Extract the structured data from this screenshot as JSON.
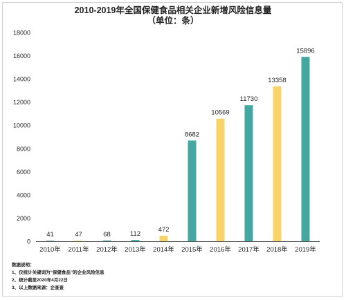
{
  "title": "2010-2019年全国保健食品相关企业新增风险信息量",
  "subtitle": "（单位：条）",
  "colors": {
    "teal": "#45a8a0",
    "yellow": "#f8d468",
    "axis": "#555555"
  },
  "notes": {
    "header": "数据说明：",
    "lines": [
      "1、仅统计关键词为“保健食品”的企业风险信息",
      "2、统计截至2020年4月22日",
      "3、以上数据来源：企查查"
    ]
  },
  "chart_data": {
    "type": "bar",
    "title": "2010-2019年全国保健食品相关企业新增风险信息量",
    "subtitle": "（单位：条）",
    "categories": [
      "2010年",
      "2011年",
      "2012年",
      "2013年",
      "2014年",
      "2015年",
      "2016年",
      "2017年",
      "2018年",
      "2019年"
    ],
    "values": [
      41,
      47,
      68,
      112,
      472,
      8682,
      10569,
      11730,
      13358,
      15896
    ],
    "bar_colors": [
      "teal",
      "yellow",
      "teal",
      "teal",
      "yellow",
      "teal",
      "yellow",
      "teal",
      "yellow",
      "teal"
    ],
    "ylim": [
      0,
      18000
    ],
    "yticks": [
      0,
      2000,
      4000,
      6000,
      8000,
      10000,
      12000,
      14000,
      16000,
      18000
    ],
    "xlabel": "",
    "ylabel": "",
    "grid": false,
    "legend": "none",
    "data_labels": true
  }
}
